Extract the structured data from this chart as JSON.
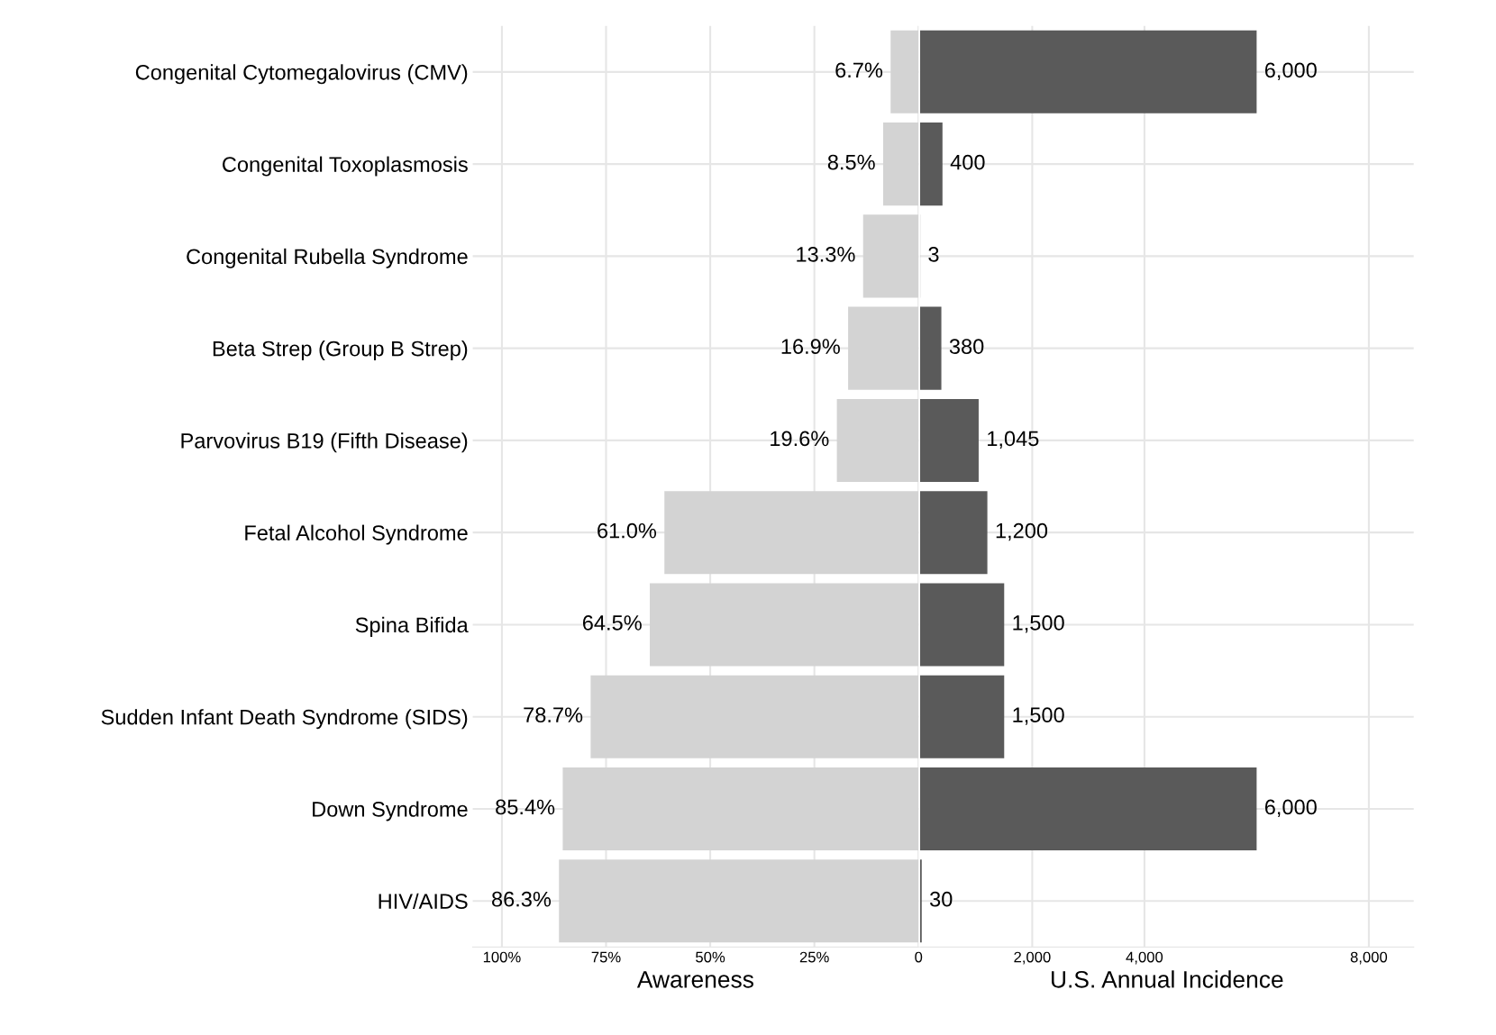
{
  "chart_data": [
    {
      "type": "bar",
      "orientation": "horizontal",
      "xlabel": "Awareness",
      "categories": [
        "Congenital Cytomegalovirus (CMV)",
        "Congenital Toxoplasmosis",
        "Congenital Rubella Syndrome",
        "Beta Strep (Group B Strep)",
        "Parvovirus B19 (Fifth Disease)",
        "Fetal Alcohol Syndrome",
        "Spina Bifida",
        "Sudden Infant Death Syndrome (SIDS)",
        "Down Syndrome",
        "HIV/AIDS"
      ],
      "values": [
        6.7,
        8.5,
        13.3,
        16.9,
        19.6,
        61.0,
        64.5,
        78.7,
        85.4,
        86.3
      ],
      "color": "#d3d3d3",
      "value_labels": [
        "6.7%",
        "8.5%",
        "13.3%",
        "16.9%",
        "19.6%",
        "61.0%",
        "64.5%",
        "78.7%",
        "85.4%",
        "86.3%"
      ],
      "xlim": [
        107,
        0
      ],
      "xticks": [
        {
          "value": 100,
          "label": "100%"
        },
        {
          "value": 75,
          "label": "75%"
        },
        {
          "value": 50,
          "label": "50%"
        },
        {
          "value": 25,
          "label": "25%"
        },
        0
      ],
      "grid": true
    },
    {
      "type": "bar",
      "orientation": "horizontal",
      "xlabel": "U.S. Annual Incidence",
      "categories": [
        null,
        null,
        null,
        null,
        null,
        null,
        null,
        null,
        null,
        null
      ],
      "values": [
        6000,
        400,
        3,
        380,
        1045,
        1200,
        1500,
        1500,
        6000,
        30
      ],
      "color": "#5a5a5a",
      "value_labels": [
        "6,000",
        "400",
        "3",
        "380",
        "1,045",
        "1,200",
        "1,500",
        "1,500",
        "6,000",
        "30"
      ],
      "xlim": [
        0,
        8800
      ],
      "xticks": [
        {
          "value": 2000,
          "label": "2,000"
        },
        {
          "value": 4000,
          "label": "4,000"
        },
        {
          "value": 8000,
          "label": "8,000"
        }
      ],
      "grid": true,
      "tick_labels": "x"
    }
  ]
}
